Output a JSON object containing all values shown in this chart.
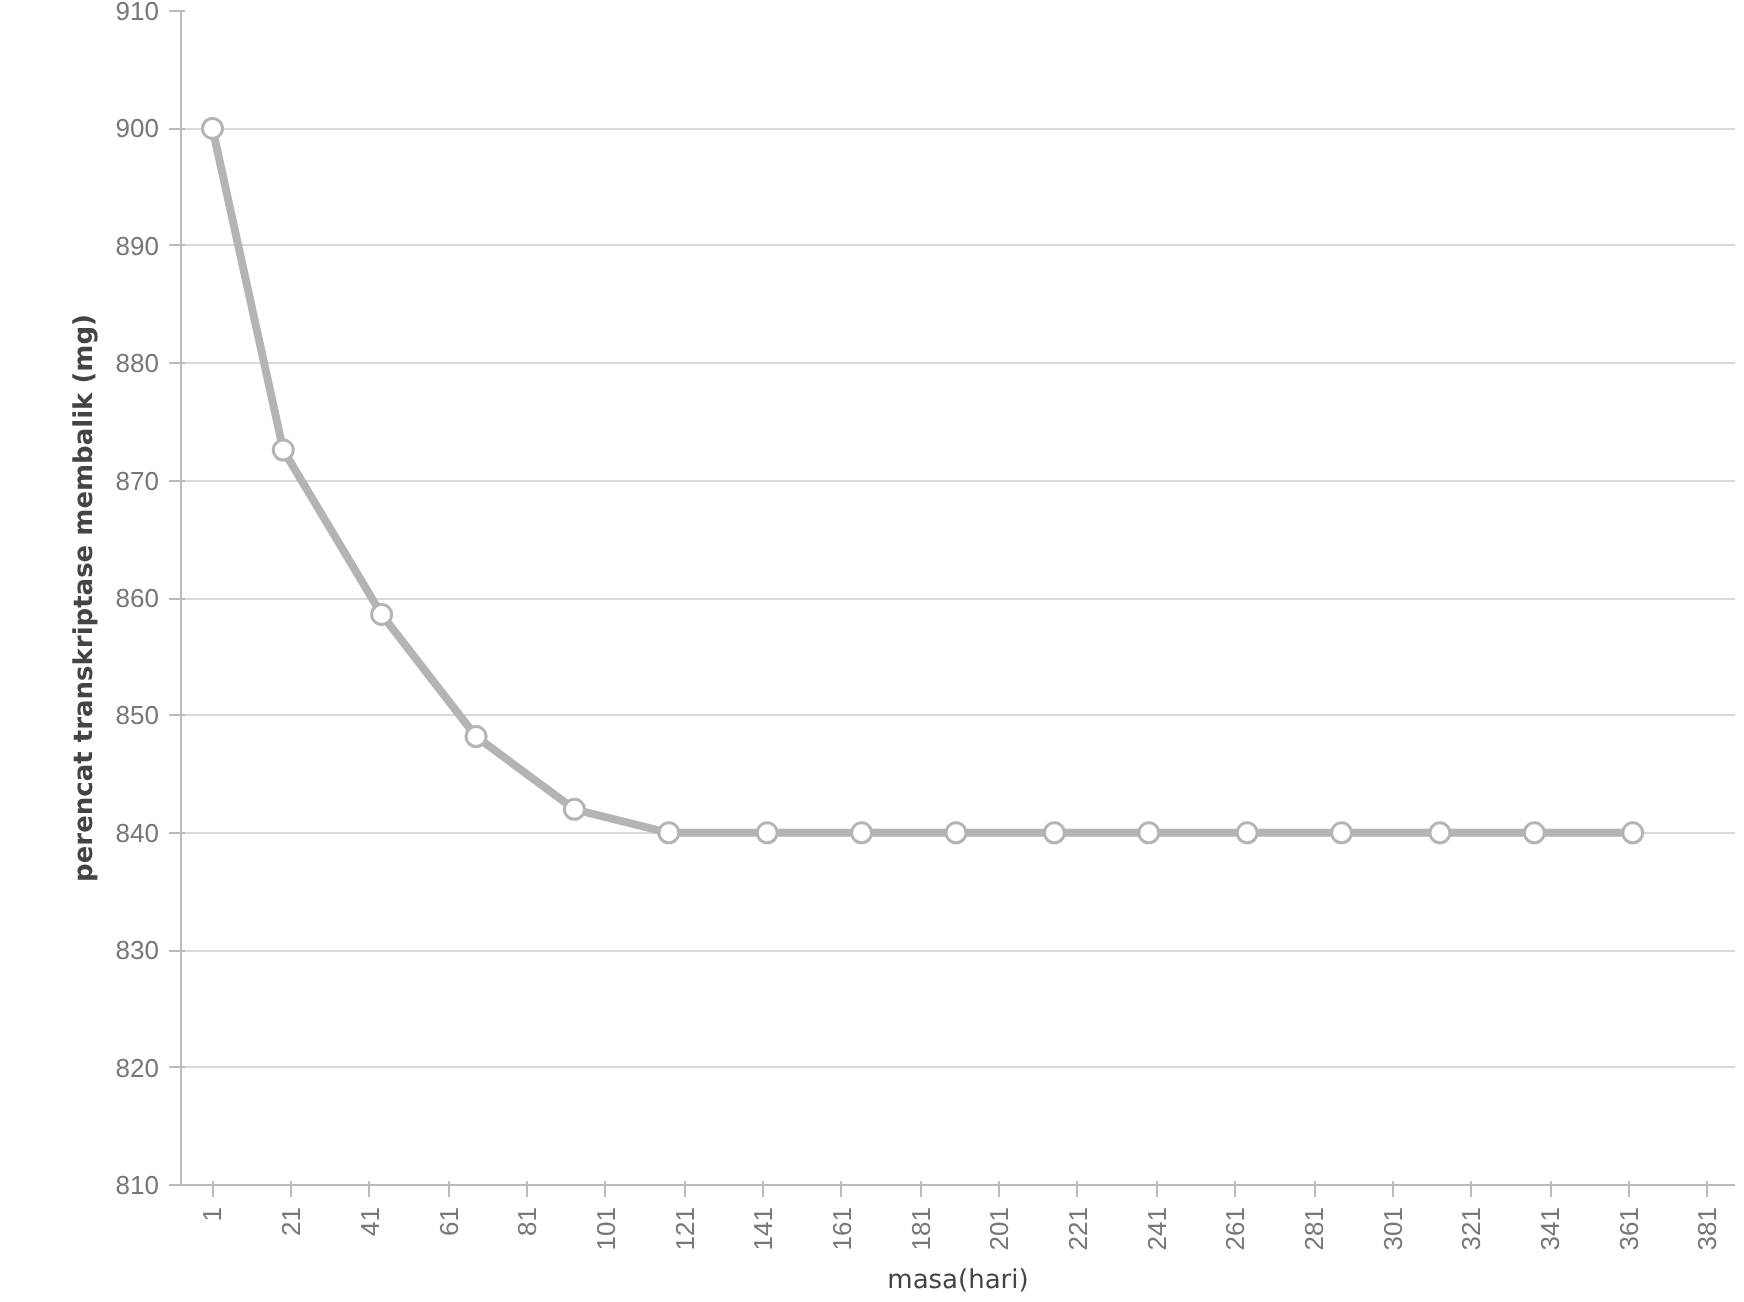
{
  "chart_data": {
    "type": "line",
    "xlabel": "masa(hari)",
    "ylabel": "perencat transkriptase membalik (mg)",
    "x": [
      1,
      19,
      44,
      68,
      93,
      117,
      142,
      166,
      190,
      215,
      239,
      264,
      288,
      313,
      337,
      362
    ],
    "series": [
      {
        "color": "#b4b4b4",
        "values": [
          900,
          872.6,
          858.6,
          848.2,
          842,
          840,
          840,
          840,
          840,
          840,
          840,
          840,
          840,
          840,
          840,
          840
        ]
      }
    ],
    "xlim": [
      -7,
      388
    ],
    "xticks": [
      1,
      21,
      41,
      61,
      81,
      101,
      121,
      141,
      161,
      181,
      201,
      221,
      241,
      261,
      281,
      301,
      321,
      341,
      361,
      381
    ],
    "ylim": [
      810,
      910
    ],
    "yticks": [
      810,
      820,
      830,
      840,
      850,
      860,
      870,
      880,
      890,
      900,
      910
    ],
    "grid": "y",
    "marker": "circle",
    "line_style": "solid"
  }
}
